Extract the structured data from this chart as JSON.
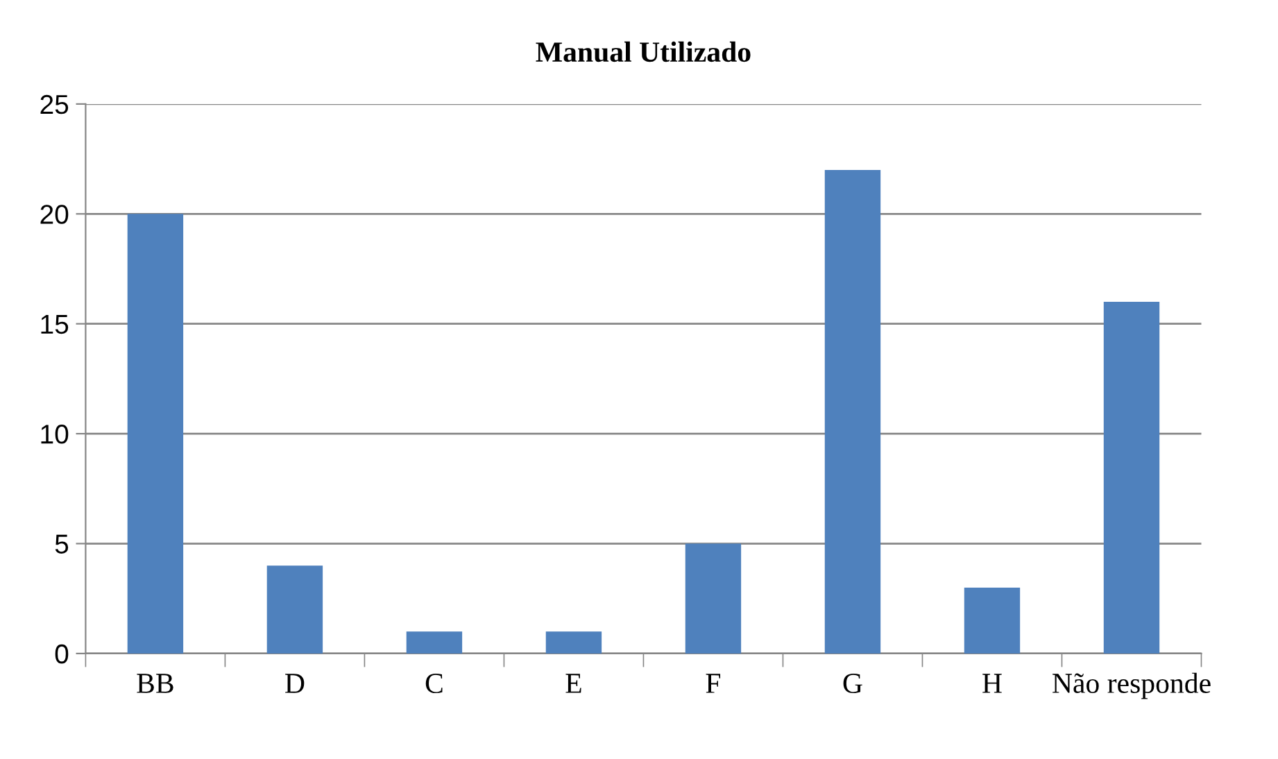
{
  "chart_data": {
    "type": "bar",
    "title": "Manual Utilizado",
    "categories": [
      "BB",
      "D",
      "C",
      "E",
      "F",
      "G",
      "H",
      "Não responde"
    ],
    "values": [
      20,
      4,
      1,
      1,
      5,
      22,
      3,
      16
    ],
    "color": "#4f81bd",
    "ylim": [
      0,
      25
    ],
    "yticks": [
      0,
      5,
      10,
      15,
      20,
      25
    ],
    "grid": "y"
  }
}
